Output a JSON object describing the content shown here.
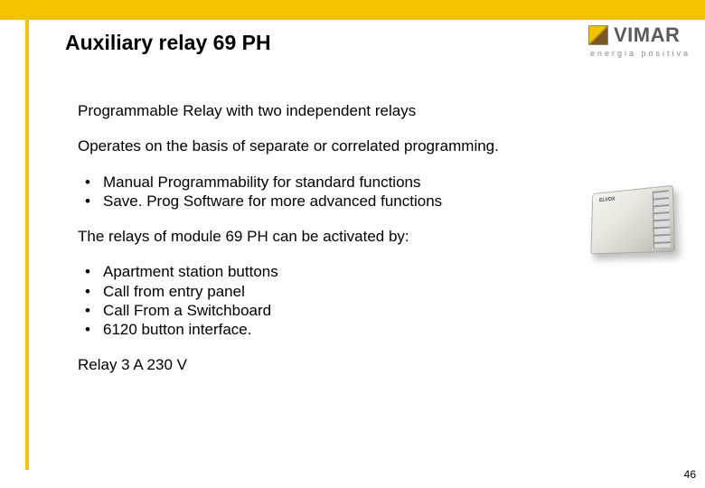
{
  "colors": {
    "accent": "#f4c300",
    "text": "#000000",
    "logo_text": "#5a5a5a",
    "tagline": "#888888"
  },
  "logo": {
    "brand": "VIMAR",
    "tagline": "energia positiva"
  },
  "title": "Auxiliary relay 69 PH",
  "intro1": "Programmable Relay with two independent relays",
  "intro2": "Operates on the basis of separate or correlated programming.",
  "features": [
    "Manual Programmability for standard functions",
    "Save. Prog Software for more advanced functions"
  ],
  "activation_intro": "The relays of module 69 PH can be activated by:",
  "activation_items": [
    "Apartment station buttons",
    "Call from entry panel",
    "Call From a Switchboard",
    "6120 button interface."
  ],
  "spec": "Relay 3 A 230 V",
  "device_label": "ELVOX",
  "page_number": "46"
}
